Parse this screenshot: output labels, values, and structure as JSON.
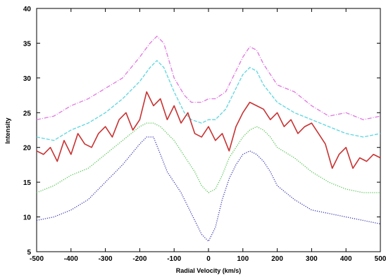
{
  "chart_data": {
    "type": "line",
    "title": "",
    "xlabel": "Radial Velocity (km/s)",
    "ylabel": "Intensity",
    "xlim": [
      -500,
      500
    ],
    "ylim": [
      5,
      40
    ],
    "xticks": [
      -500,
      -400,
      -300,
      -200,
      -100,
      0,
      100,
      200,
      300,
      400,
      500
    ],
    "yticks": [
      5,
      10,
      15,
      20,
      25,
      30,
      35,
      40
    ],
    "grid": false,
    "legend": "none",
    "series": [
      {
        "color": "#e077e0",
        "style": "dash-dot",
        "x": [
          -500,
          -450,
          -400,
          -350,
          -300,
          -250,
          -200,
          -170,
          -150,
          -130,
          -100,
          -70,
          -50,
          -20,
          0,
          20,
          50,
          80,
          100,
          120,
          140,
          160,
          200,
          250,
          300,
          350,
          400,
          450,
          500
        ],
        "y": [
          24,
          24.5,
          26,
          27,
          28.5,
          30,
          33,
          35,
          36,
          35,
          30,
          27.5,
          26.5,
          26.5,
          27,
          27,
          28,
          31,
          33,
          34.5,
          34,
          32,
          29,
          28,
          26,
          24.5,
          25,
          24,
          24.5
        ]
      },
      {
        "color": "#5ed6e0",
        "style": "dashed",
        "x": [
          -500,
          -450,
          -400,
          -350,
          -300,
          -250,
          -200,
          -170,
          -150,
          -130,
          -100,
          -70,
          -50,
          -20,
          0,
          20,
          50,
          80,
          100,
          120,
          140,
          160,
          200,
          250,
          300,
          350,
          400,
          450,
          500
        ],
        "y": [
          21.5,
          21,
          22.5,
          23.5,
          25,
          27,
          29.5,
          31.5,
          32.5,
          31.5,
          28,
          25,
          24,
          23.5,
          24,
          24,
          25.5,
          28.5,
          30.5,
          31.5,
          31,
          29,
          26.5,
          25,
          24,
          23,
          22,
          21.5,
          22
        ]
      },
      {
        "color": "#c83232",
        "style": "solid",
        "x": [
          -500,
          -480,
          -460,
          -440,
          -420,
          -400,
          -380,
          -360,
          -340,
          -320,
          -300,
          -280,
          -260,
          -240,
          -220,
          -200,
          -180,
          -160,
          -140,
          -120,
          -100,
          -80,
          -60,
          -40,
          -20,
          0,
          20,
          40,
          60,
          80,
          100,
          120,
          140,
          160,
          180,
          200,
          220,
          240,
          260,
          280,
          300,
          320,
          340,
          360,
          380,
          400,
          420,
          440,
          460,
          480,
          500
        ],
        "y": [
          19.5,
          19,
          20,
          18,
          21,
          19,
          22,
          20.5,
          20,
          22,
          23,
          21.5,
          24,
          25,
          22.5,
          24,
          28,
          26,
          27,
          24,
          26,
          23.5,
          25,
          22,
          21.5,
          23,
          21,
          22,
          19.5,
          23,
          25,
          26.5,
          26,
          25.5,
          24,
          25,
          23,
          24,
          22,
          23,
          23.5,
          22,
          20.5,
          17,
          19,
          20,
          17,
          18.5,
          18,
          19,
          18.5
        ]
      },
      {
        "color": "#55c455",
        "style": "dotted",
        "x": [
          -500,
          -450,
          -400,
          -350,
          -300,
          -250,
          -200,
          -180,
          -160,
          -140,
          -120,
          -100,
          -80,
          -60,
          -40,
          -20,
          0,
          20,
          40,
          60,
          80,
          100,
          120,
          140,
          160,
          180,
          200,
          250,
          300,
          350,
          400,
          450,
          500
        ],
        "y": [
          13.5,
          14.5,
          16,
          17,
          19,
          21,
          23,
          23.5,
          23.5,
          23,
          22,
          21,
          19.5,
          18,
          16.5,
          14.5,
          13.5,
          14,
          16,
          18.5,
          20,
          21.5,
          22.5,
          23,
          22.5,
          21.5,
          20,
          18.5,
          16.5,
          15,
          14,
          13.5,
          13.5
        ]
      },
      {
        "color": "#3a3ab0",
        "style": "dotted",
        "x": [
          -500,
          -450,
          -400,
          -350,
          -300,
          -250,
          -200,
          -180,
          -160,
          -140,
          -120,
          -100,
          -80,
          -60,
          -40,
          -20,
          0,
          20,
          40,
          60,
          80,
          100,
          120,
          140,
          160,
          180,
          200,
          250,
          300,
          350,
          400,
          450,
          500
        ],
        "y": [
          9.5,
          10,
          11,
          12.5,
          15,
          17.5,
          20.5,
          21.5,
          21.5,
          19,
          16.5,
          15,
          13.5,
          11.5,
          9.5,
          7.5,
          6.5,
          8.5,
          12.5,
          15.5,
          17.5,
          19,
          19.5,
          19,
          18,
          16.5,
          14.5,
          12.5,
          11,
          10.5,
          10,
          9.5,
          9
        ]
      }
    ]
  }
}
